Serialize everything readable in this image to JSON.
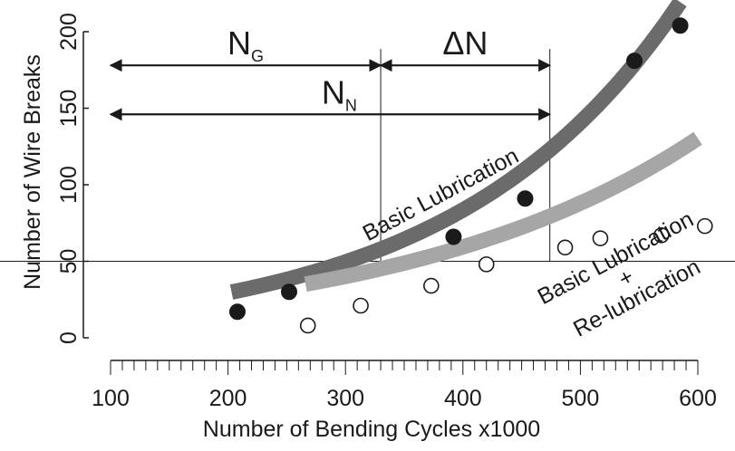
{
  "chart_data": {
    "type": "scatter",
    "xlabel": "Number of Bending Cycles x1000",
    "ylabel": "Number of Wire Breaks",
    "xlim": [
      100,
      600
    ],
    "ylim": [
      0,
      200
    ],
    "x_ticks": [
      100,
      200,
      300,
      400,
      500,
      600
    ],
    "y_ticks": [
      0,
      50,
      100,
      150,
      200
    ],
    "x_minor_step": 10,
    "series": [
      {
        "name": "Basic Lubrication",
        "marker": "filled-circle",
        "points": [
          [
            208,
            17
          ],
          [
            252,
            30
          ],
          [
            392,
            66
          ],
          [
            453,
            91
          ],
          [
            546,
            181
          ],
          [
            585,
            204
          ]
        ],
        "trend": {
          "x_from": 203,
          "x_to": 585,
          "a": 10.35,
          "b": 0.00522
        }
      },
      {
        "name_lines": [
          "Basic Lubrication",
          "+",
          "Re-lubrication"
        ],
        "marker": "open-circle",
        "points": [
          [
            268,
            8
          ],
          [
            313,
            21
          ],
          [
            373,
            34
          ],
          [
            420,
            48
          ],
          [
            487,
            59
          ],
          [
            517,
            65
          ],
          [
            569,
            67
          ],
          [
            606,
            73
          ]
        ],
        "trend": {
          "x_from": 266,
          "x_to": 600,
          "a": 12.33,
          "b": 0.00393
        }
      }
    ],
    "reference_lines": {
      "horizontal_y": 50,
      "vertical_x": [
        330,
        474
      ]
    },
    "annotations": [
      {
        "main": "N",
        "sub": "G",
        "from_x": 100,
        "to_x": 330,
        "y": 178
      },
      {
        "main": "ΔN",
        "sub": "",
        "from_x": 330,
        "to_x": 474,
        "y": 178
      },
      {
        "main": "N",
        "sub": "N",
        "from_x": 100,
        "to_x": 474,
        "y": 146
      }
    ]
  },
  "colors": {
    "basic_trend": "#6b6b6b",
    "relub_trend": "#a6a6a6",
    "markers": "#1a1a1a",
    "lines": "#1a1a1a"
  }
}
